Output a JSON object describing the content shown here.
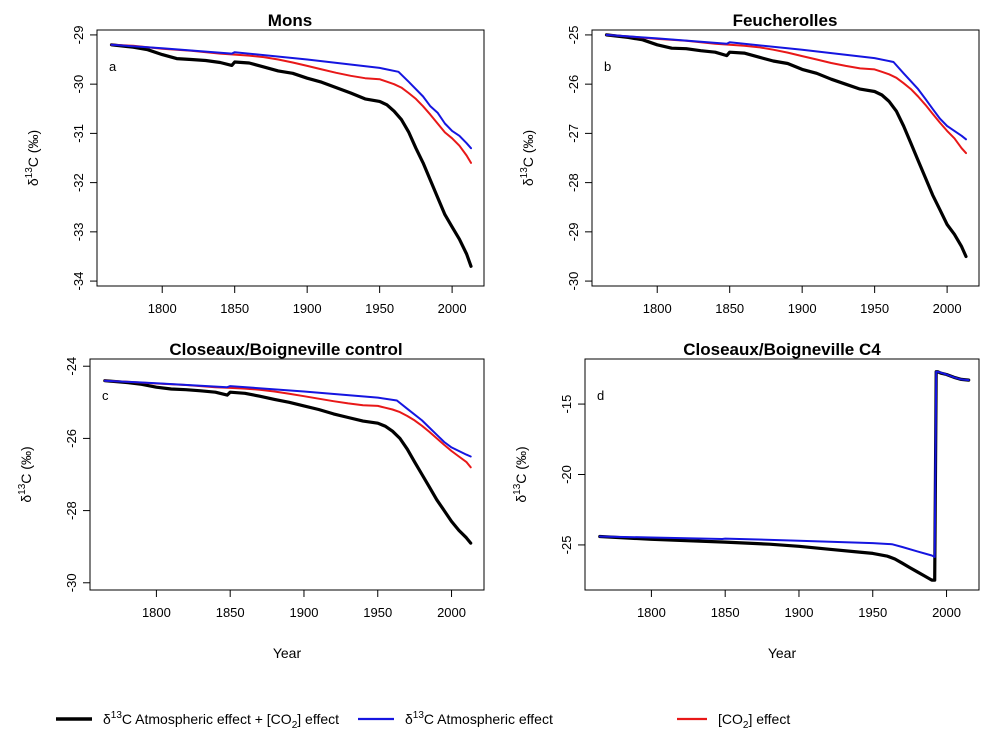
{
  "legend": {
    "items": [
      {
        "pre": "δ",
        "sup": "13",
        "post": "C Atmospheric effect + [CO",
        "sub": "2",
        "post2": "] effect",
        "color": "#000000"
      },
      {
        "pre": "δ",
        "sup": "13",
        "post": "C Atmospheric effect",
        "sub": "",
        "post2": "",
        "color": "#1515e0"
      },
      {
        "pre": "[CO",
        "sup": "",
        "post": "",
        "sub": "2",
        "post2": "] effect",
        "color": "#e81818"
      }
    ]
  },
  "ylabel": {
    "pre": "δ",
    "sup": "13",
    "post": "C (‰)"
  },
  "chart_data": [
    {
      "type": "line",
      "title": "Mons",
      "panel_label": "a",
      "xlabel": "",
      "xlim": [
        1755,
        2022
      ],
      "ylim": [
        -34.1,
        -28.9
      ],
      "xticks": [
        1800,
        1850,
        1900,
        1950,
        2000
      ],
      "yticks": [
        -34,
        -33,
        -32,
        -31,
        -30,
        -29
      ],
      "series": [
        {
          "key": "combined",
          "x": [
            1765,
            1780,
            1790,
            1800,
            1810,
            1820,
            1830,
            1840,
            1848,
            1850,
            1860,
            1870,
            1880,
            1890,
            1900,
            1910,
            1920,
            1930,
            1940,
            1950,
            1955,
            1960,
            1965,
            1970,
            1975,
            1980,
            1985,
            1990,
            1995,
            2000,
            2005,
            2010,
            2013
          ],
          "y": [
            -29.2,
            -29.25,
            -29.3,
            -29.4,
            -29.48,
            -29.5,
            -29.52,
            -29.56,
            -29.62,
            -29.55,
            -29.57,
            -29.65,
            -29.73,
            -29.78,
            -29.88,
            -29.96,
            -30.07,
            -30.18,
            -30.3,
            -30.35,
            -30.42,
            -30.55,
            -30.72,
            -30.97,
            -31.3,
            -31.6,
            -31.95,
            -32.3,
            -32.65,
            -32.9,
            -33.15,
            -33.45,
            -33.7
          ]
        },
        {
          "key": "atmospheric",
          "x": [
            1765,
            1800,
            1848,
            1850,
            1900,
            1950,
            1963,
            1970,
            1980,
            1985,
            1990,
            1995,
            2000,
            2005,
            2010,
            2013
          ],
          "y": [
            -29.2,
            -29.27,
            -29.38,
            -29.35,
            -29.5,
            -29.67,
            -29.75,
            -29.95,
            -30.25,
            -30.45,
            -30.58,
            -30.8,
            -30.95,
            -31.05,
            -31.2,
            -31.3
          ]
        },
        {
          "key": "co2",
          "x": [
            1765,
            1780,
            1800,
            1820,
            1840,
            1850,
            1860,
            1870,
            1880,
            1890,
            1900,
            1910,
            1920,
            1930,
            1940,
            1950,
            1955,
            1960,
            1965,
            1970,
            1975,
            1980,
            1985,
            1990,
            1995,
            2000,
            2005,
            2010,
            2013
          ],
          "y": [
            -29.2,
            -29.22,
            -29.28,
            -29.32,
            -29.38,
            -29.4,
            -29.42,
            -29.45,
            -29.5,
            -29.56,
            -29.63,
            -29.7,
            -29.77,
            -29.83,
            -29.88,
            -29.9,
            -29.95,
            -30.0,
            -30.07,
            -30.18,
            -30.3,
            -30.45,
            -30.62,
            -30.8,
            -30.98,
            -31.1,
            -31.25,
            -31.45,
            -31.6
          ]
        }
      ]
    },
    {
      "type": "line",
      "title": "Feucherolles",
      "panel_label": "b",
      "xlabel": "",
      "xlim": [
        1755,
        2022
      ],
      "ylim": [
        -30.1,
        -24.9
      ],
      "xticks": [
        1800,
        1850,
        1900,
        1950,
        2000
      ],
      "yticks": [
        -30,
        -29,
        -28,
        -27,
        -26,
        -25
      ],
      "series": [
        {
          "key": "combined",
          "x": [
            1765,
            1780,
            1790,
            1800,
            1810,
            1820,
            1830,
            1840,
            1848,
            1850,
            1860,
            1870,
            1880,
            1890,
            1900,
            1910,
            1920,
            1930,
            1940,
            1950,
            1955,
            1960,
            1965,
            1970,
            1975,
            1980,
            1985,
            1990,
            1995,
            2000,
            2005,
            2010,
            2013
          ],
          "y": [
            -25.0,
            -25.05,
            -25.1,
            -25.2,
            -25.27,
            -25.28,
            -25.32,
            -25.35,
            -25.42,
            -25.35,
            -25.37,
            -25.45,
            -25.53,
            -25.58,
            -25.7,
            -25.78,
            -25.9,
            -26.0,
            -26.1,
            -26.15,
            -26.22,
            -26.35,
            -26.55,
            -26.85,
            -27.2,
            -27.55,
            -27.9,
            -28.25,
            -28.55,
            -28.85,
            -29.05,
            -29.3,
            -29.5
          ]
        },
        {
          "key": "atmospheric",
          "x": [
            1765,
            1800,
            1848,
            1850,
            1900,
            1950,
            1963,
            1970,
            1980,
            1985,
            1990,
            1995,
            2000,
            2005,
            2010,
            2013
          ],
          "y": [
            -25.0,
            -25.07,
            -25.18,
            -25.15,
            -25.3,
            -25.47,
            -25.55,
            -25.78,
            -26.1,
            -26.3,
            -26.5,
            -26.7,
            -26.85,
            -26.95,
            -27.05,
            -27.12
          ]
        },
        {
          "key": "co2",
          "x": [
            1765,
            1780,
            1800,
            1820,
            1840,
            1850,
            1860,
            1870,
            1880,
            1890,
            1900,
            1910,
            1920,
            1930,
            1940,
            1950,
            1955,
            1960,
            1965,
            1970,
            1975,
            1980,
            1985,
            1990,
            1995,
            2000,
            2005,
            2010,
            2013
          ],
          "y": [
            -25.0,
            -25.03,
            -25.08,
            -25.12,
            -25.18,
            -25.2,
            -25.22,
            -25.25,
            -25.3,
            -25.36,
            -25.43,
            -25.5,
            -25.57,
            -25.63,
            -25.68,
            -25.7,
            -25.75,
            -25.8,
            -25.87,
            -25.98,
            -26.1,
            -26.25,
            -26.42,
            -26.6,
            -26.78,
            -26.95,
            -27.1,
            -27.3,
            -27.4
          ]
        }
      ]
    },
    {
      "type": "line",
      "title": "Closeaux/Boigneville control",
      "panel_label": "c",
      "xlabel": "Year",
      "xlim": [
        1755,
        2022
      ],
      "ylim": [
        -30.2,
        -23.8
      ],
      "xticks": [
        1800,
        1850,
        1900,
        1950,
        2000
      ],
      "yticks": [
        -30,
        -28,
        -26,
        -24
      ],
      "series": [
        {
          "key": "combined",
          "x": [
            1765,
            1780,
            1790,
            1800,
            1810,
            1820,
            1830,
            1840,
            1848,
            1850,
            1860,
            1870,
            1880,
            1890,
            1900,
            1910,
            1920,
            1930,
            1940,
            1950,
            1955,
            1960,
            1965,
            1970,
            1975,
            1980,
            1985,
            1990,
            1995,
            2000,
            2005,
            2010,
            2013
          ],
          "y": [
            -24.4,
            -24.45,
            -24.5,
            -24.58,
            -24.63,
            -24.65,
            -24.68,
            -24.72,
            -24.8,
            -24.72,
            -24.75,
            -24.83,
            -24.92,
            -25.0,
            -25.1,
            -25.2,
            -25.32,
            -25.42,
            -25.52,
            -25.58,
            -25.66,
            -25.8,
            -26.0,
            -26.3,
            -26.65,
            -27.0,
            -27.35,
            -27.7,
            -28.0,
            -28.3,
            -28.55,
            -28.75,
            -28.9
          ]
        },
        {
          "key": "atmospheric",
          "x": [
            1765,
            1800,
            1848,
            1850,
            1900,
            1950,
            1963,
            1970,
            1980,
            1985,
            1990,
            1995,
            2000,
            2005,
            2010,
            2013
          ],
          "y": [
            -24.4,
            -24.47,
            -24.58,
            -24.55,
            -24.7,
            -24.87,
            -24.95,
            -25.18,
            -25.5,
            -25.7,
            -25.9,
            -26.1,
            -26.25,
            -26.35,
            -26.45,
            -26.5
          ]
        },
        {
          "key": "co2",
          "x": [
            1765,
            1780,
            1800,
            1820,
            1840,
            1850,
            1860,
            1870,
            1880,
            1890,
            1900,
            1910,
            1920,
            1930,
            1940,
            1950,
            1955,
            1960,
            1965,
            1970,
            1975,
            1980,
            1985,
            1990,
            1995,
            2000,
            2005,
            2010,
            2013
          ],
          "y": [
            -24.4,
            -24.43,
            -24.48,
            -24.52,
            -24.58,
            -24.6,
            -24.62,
            -24.65,
            -24.7,
            -24.76,
            -24.83,
            -24.9,
            -24.97,
            -25.03,
            -25.08,
            -25.1,
            -25.15,
            -25.2,
            -25.27,
            -25.38,
            -25.5,
            -25.65,
            -25.82,
            -26.0,
            -26.18,
            -26.35,
            -26.5,
            -26.65,
            -26.8
          ]
        }
      ]
    },
    {
      "type": "line",
      "title": "Closeaux/Boigneville C4",
      "panel_label": "d",
      "xlabel": "Year",
      "xlim": [
        1755,
        2022
      ],
      "ylim": [
        -28.2,
        -11.8
      ],
      "xticks": [
        1800,
        1850,
        1900,
        1950,
        2000
      ],
      "yticks": [
        -25,
        -20,
        -15
      ],
      "series": [
        {
          "key": "combined",
          "x": [
            1765,
            1800,
            1850,
            1880,
            1900,
            1920,
            1940,
            1950,
            1960,
            1965,
            1970,
            1975,
            1980,
            1985,
            1990,
            1992,
            1993,
            1994,
            1996,
            2000,
            2005,
            2010,
            2015
          ],
          "y": [
            -24.4,
            -24.6,
            -24.8,
            -24.95,
            -25.1,
            -25.3,
            -25.5,
            -25.6,
            -25.8,
            -26.0,
            -26.3,
            -26.6,
            -26.9,
            -27.2,
            -27.5,
            -27.5,
            -12.7,
            -12.7,
            -12.8,
            -12.9,
            -13.1,
            -13.25,
            -13.3
          ]
        },
        {
          "key": "atmospheric",
          "x": [
            1765,
            1800,
            1848,
            1850,
            1900,
            1950,
            1963,
            1970,
            1980,
            1990,
            1992,
            1993,
            1994,
            2000,
            2005,
            2010,
            2015
          ],
          "y": [
            -24.4,
            -24.47,
            -24.58,
            -24.55,
            -24.7,
            -24.87,
            -24.95,
            -25.15,
            -25.45,
            -25.75,
            -25.85,
            -12.7,
            -12.7,
            -12.9,
            -13.1,
            -13.25,
            -13.3
          ]
        }
      ]
    }
  ]
}
